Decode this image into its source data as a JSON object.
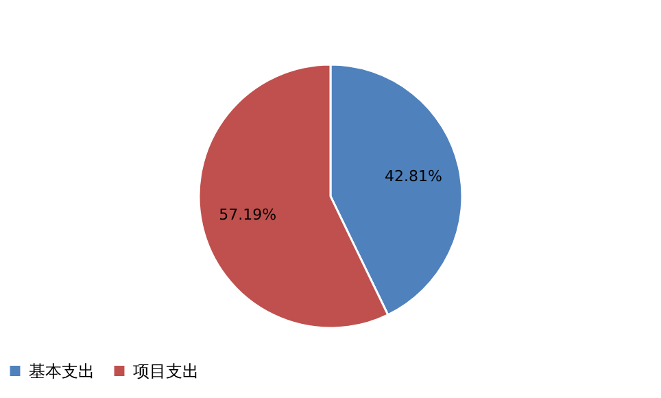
{
  "chart_data": {
    "type": "pie",
    "categories": [
      "基本支出",
      "项目支出"
    ],
    "values": [
      42.81,
      57.19
    ],
    "colors": [
      "#4f81bd",
      "#c0504d"
    ],
    "value_labels": [
      "42.81%",
      "57.19%"
    ],
    "legend": "bottom"
  }
}
